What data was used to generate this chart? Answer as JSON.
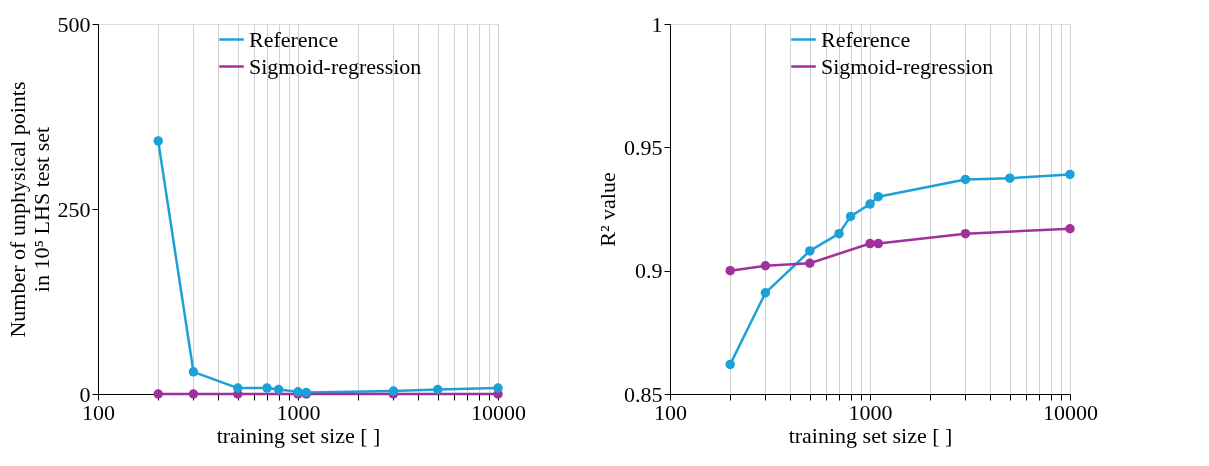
{
  "chart_data": [
    {
      "type": "line",
      "xlabel": "training  set size [ ]",
      "ylabel": "Number of  unphysical points\nin 10⁵ LHS test set",
      "x": [
        200,
        300,
        500,
        700,
        800,
        1000,
        1100,
        3000,
        5000,
        10000
      ],
      "series": [
        {
          "name": "Reference",
          "color": "#1ba1d8",
          "values": [
            342,
            30,
            8,
            8,
            6,
            3,
            2,
            4,
            6,
            8
          ]
        },
        {
          "name": "Sigmoid-regression",
          "color": "#a0309a",
          "values": [
            0,
            0,
            0,
            null,
            null,
            0,
            0,
            0,
            null,
            0
          ]
        }
      ],
      "xlim": [
        100,
        10000
      ],
      "ylim": [
        0,
        500
      ],
      "log": "x",
      "xticks": [
        100,
        {
          "value": 200,
          "label": null
        },
        {
          "value": 300,
          "label": null
        },
        {
          "value": 400,
          "label": null
        },
        {
          "value": 500,
          "label": null
        },
        {
          "value": 600,
          "label": null
        },
        {
          "value": 700,
          "label": null
        },
        {
          "value": 800,
          "label": null
        },
        {
          "value": 900,
          "label": null
        },
        1000,
        {
          "value": 2000,
          "label": null
        },
        {
          "value": 3000,
          "label": null
        },
        {
          "value": 4000,
          "label": null
        },
        {
          "value": 5000,
          "label": null
        },
        {
          "value": 6000,
          "label": null
        },
        {
          "value": 7000,
          "label": null
        },
        {
          "value": 8000,
          "label": null
        },
        {
          "value": 9000,
          "label": null
        },
        10000
      ],
      "yticks": [
        0,
        250,
        500
      ],
      "grid": "x",
      "legend": "top",
      "marker": "circle",
      "line_style": "solid"
    },
    {
      "type": "line",
      "xlabel": "training  set size [ ]",
      "ylabel": "R² value",
      "x": [
        200,
        300,
        500,
        700,
        800,
        1000,
        1100,
        3000,
        5000,
        10000
      ],
      "series": [
        {
          "name": "Reference",
          "color": "#1ba1d8",
          "values": [
            0.862,
            0.891,
            0.908,
            0.915,
            0.922,
            0.927,
            0.93,
            0.937,
            0.9375,
            0.939
          ]
        },
        {
          "name": "Sigmoid-regression",
          "color": "#a0309a",
          "values": [
            0.9,
            0.902,
            0.903,
            null,
            null,
            0.911,
            0.911,
            0.915,
            null,
            0.917
          ]
        }
      ],
      "xlim": [
        100,
        10000
      ],
      "ylim": [
        0.85,
        1
      ],
      "log": "x",
      "xticks": [
        100,
        {
          "value": 200,
          "label": null
        },
        {
          "value": 300,
          "label": null
        },
        {
          "value": 400,
          "label": null
        },
        {
          "value": 500,
          "label": null
        },
        {
          "value": 600,
          "label": null
        },
        {
          "value": 700,
          "label": null
        },
        {
          "value": 800,
          "label": null
        },
        {
          "value": 900,
          "label": null
        },
        1000,
        {
          "value": 2000,
          "label": null
        },
        {
          "value": 3000,
          "label": null
        },
        {
          "value": 4000,
          "label": null
        },
        {
          "value": 5000,
          "label": null
        },
        {
          "value": 6000,
          "label": null
        },
        {
          "value": 7000,
          "label": null
        },
        {
          "value": 8000,
          "label": null
        },
        {
          "value": 9000,
          "label": null
        },
        10000
      ],
      "yticks": [
        0.85,
        0.9,
        0.95,
        1
      ],
      "grid": "x",
      "legend": "top",
      "marker": "circle",
      "line_style": "solid"
    }
  ]
}
